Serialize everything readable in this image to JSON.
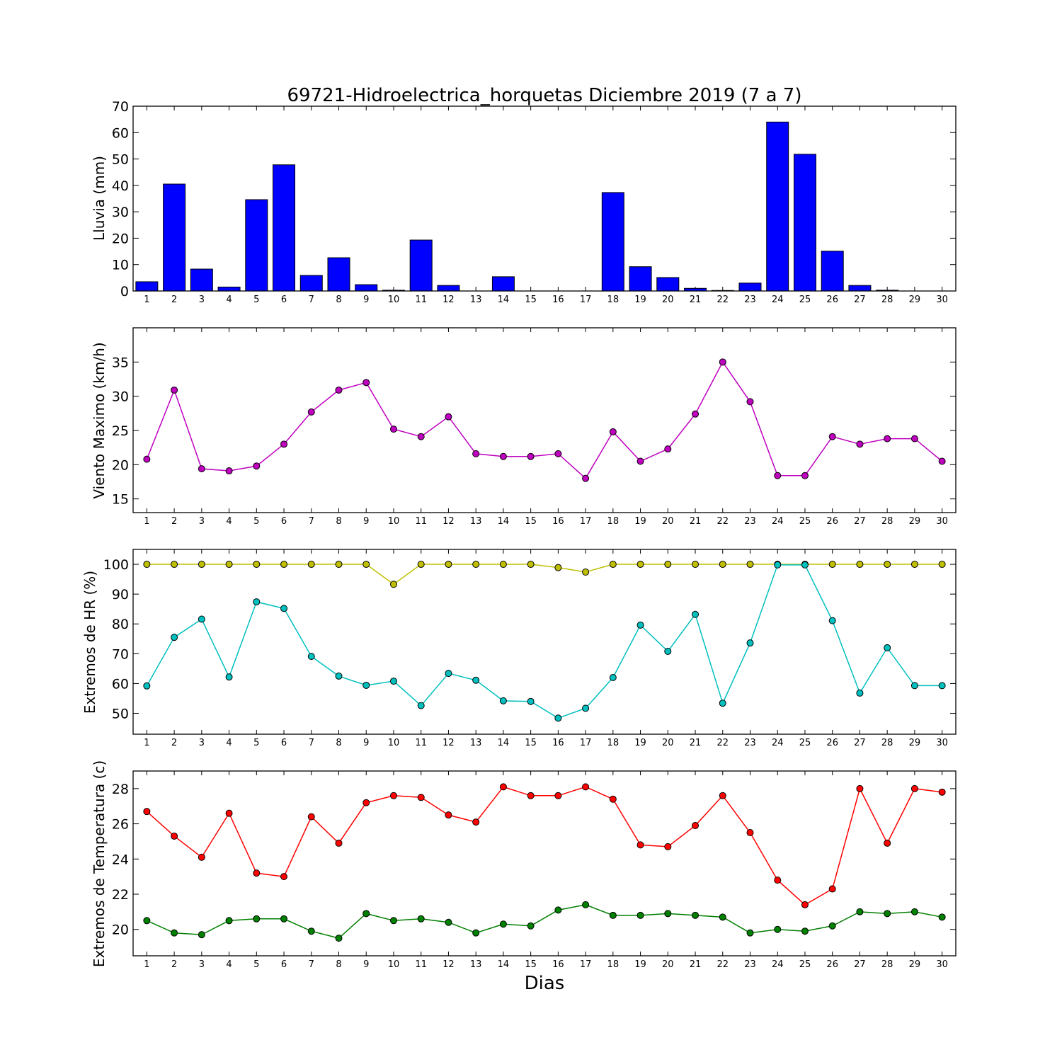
{
  "chart_data": [
    {
      "type": "bar",
      "title": "69721-Hidroelectrica_horquetas Diciembre 2019  (7 a 7)",
      "ylabel": "Lluvia (mm)",
      "xlabel": "",
      "ylim": [
        0,
        70
      ],
      "yticks": [
        0,
        10,
        20,
        30,
        40,
        50,
        60,
        70
      ],
      "categories": [
        "1",
        "2",
        "3",
        "4",
        "5",
        "6",
        "7",
        "8",
        "9",
        "10",
        "11",
        "12",
        "13",
        "14",
        "15",
        "16",
        "17",
        "18",
        "19",
        "20",
        "21",
        "22",
        "23",
        "24",
        "25",
        "26",
        "27",
        "28",
        "29",
        "30"
      ],
      "series": [
        {
          "color": "#0000ff",
          "values": [
            3.5,
            40.5,
            8.3,
            1.5,
            34.6,
            47.8,
            5.9,
            12.6,
            2.4,
            0.3,
            19.3,
            2.1,
            0,
            5.4,
            0,
            0,
            0,
            37.3,
            9.2,
            5.1,
            1.0,
            0.2,
            3.0,
            64.0,
            51.8,
            15.1,
            2.1,
            0.3,
            0,
            0
          ]
        }
      ],
      "grid": false
    },
    {
      "type": "line",
      "ylabel": "Viento Maximo (km/h)",
      "ylim": [
        13,
        40
      ],
      "yticks": [
        15,
        20,
        25,
        30,
        35
      ],
      "x": [
        1,
        2,
        3,
        4,
        5,
        6,
        7,
        8,
        9,
        10,
        11,
        12,
        13,
        14,
        15,
        16,
        17,
        18,
        19,
        20,
        21,
        22,
        23,
        24,
        25,
        26,
        27,
        28,
        29,
        30
      ],
      "series": [
        {
          "color": "#bf00bf",
          "values": [
            20.8,
            30.9,
            19.4,
            19.1,
            19.8,
            23.0,
            27.7,
            30.9,
            32.0,
            25.2,
            24.1,
            27.0,
            21.6,
            21.2,
            21.2,
            21.6,
            18.0,
            24.8,
            20.5,
            22.3,
            27.4,
            35.0,
            29.2,
            18.4,
            18.4,
            24.1,
            23.0,
            23.8,
            23.8,
            20.5
          ]
        }
      ],
      "grid": false
    },
    {
      "type": "line",
      "ylabel": "Extremos de HR (%)",
      "ylim": [
        43,
        105
      ],
      "yticks": [
        50,
        60,
        70,
        80,
        90,
        100
      ],
      "x": [
        1,
        2,
        3,
        4,
        5,
        6,
        7,
        8,
        9,
        10,
        11,
        12,
        13,
        14,
        15,
        16,
        17,
        18,
        19,
        20,
        21,
        22,
        23,
        24,
        25,
        26,
        27,
        28,
        29,
        30
      ],
      "series": [
        {
          "color": "#bfbf00",
          "values": [
            100,
            100,
            100,
            100,
            100,
            100,
            100,
            100,
            100,
            93.3,
            100,
            100,
            100,
            100,
            100,
            98.9,
            97.4,
            100,
            100,
            100,
            100,
            100,
            100,
            100,
            100,
            100,
            100,
            100,
            100,
            100
          ]
        },
        {
          "color": "#00bfbf",
          "values": [
            59.2,
            75.5,
            81.6,
            62.2,
            87.4,
            85.2,
            69.1,
            62.5,
            59.4,
            60.8,
            52.6,
            63.4,
            61.1,
            54.2,
            54.0,
            48.4,
            51.7,
            62.0,
            79.6,
            70.8,
            83.2,
            53.4,
            73.6,
            99.8,
            99.8,
            81.1,
            56.8,
            72.0,
            59.3,
            59.3
          ]
        }
      ],
      "grid": false
    },
    {
      "type": "line",
      "ylabel": "Extremos de Temperatura (c)",
      "xlabel": "Dias",
      "ylim": [
        18.5,
        29
      ],
      "yticks": [
        20,
        22,
        24,
        26,
        28
      ],
      "x": [
        1,
        2,
        3,
        4,
        5,
        6,
        7,
        8,
        9,
        10,
        11,
        12,
        13,
        14,
        15,
        16,
        17,
        18,
        19,
        20,
        21,
        22,
        23,
        24,
        25,
        26,
        27,
        28,
        29,
        30
      ],
      "series": [
        {
          "color": "#ff0000",
          "values": [
            26.7,
            25.3,
            24.1,
            26.6,
            23.2,
            23.0,
            26.4,
            24.9,
            27.2,
            27.6,
            27.5,
            26.5,
            26.1,
            28.1,
            27.6,
            27.6,
            28.1,
            27.4,
            24.8,
            24.7,
            25.9,
            27.6,
            25.5,
            22.8,
            21.4,
            22.3,
            28.0,
            24.9,
            28.0,
            27.8
          ]
        },
        {
          "color": "#008000",
          "values": [
            20.5,
            19.8,
            19.7,
            20.5,
            20.6,
            20.6,
            19.9,
            19.5,
            20.9,
            20.5,
            20.6,
            20.4,
            19.8,
            20.3,
            20.2,
            21.1,
            21.4,
            20.8,
            20.8,
            20.9,
            20.8,
            20.7,
            19.8,
            20.0,
            19.9,
            20.2,
            21.0,
            20.9,
            21.0,
            20.7
          ]
        }
      ],
      "grid": false
    }
  ]
}
